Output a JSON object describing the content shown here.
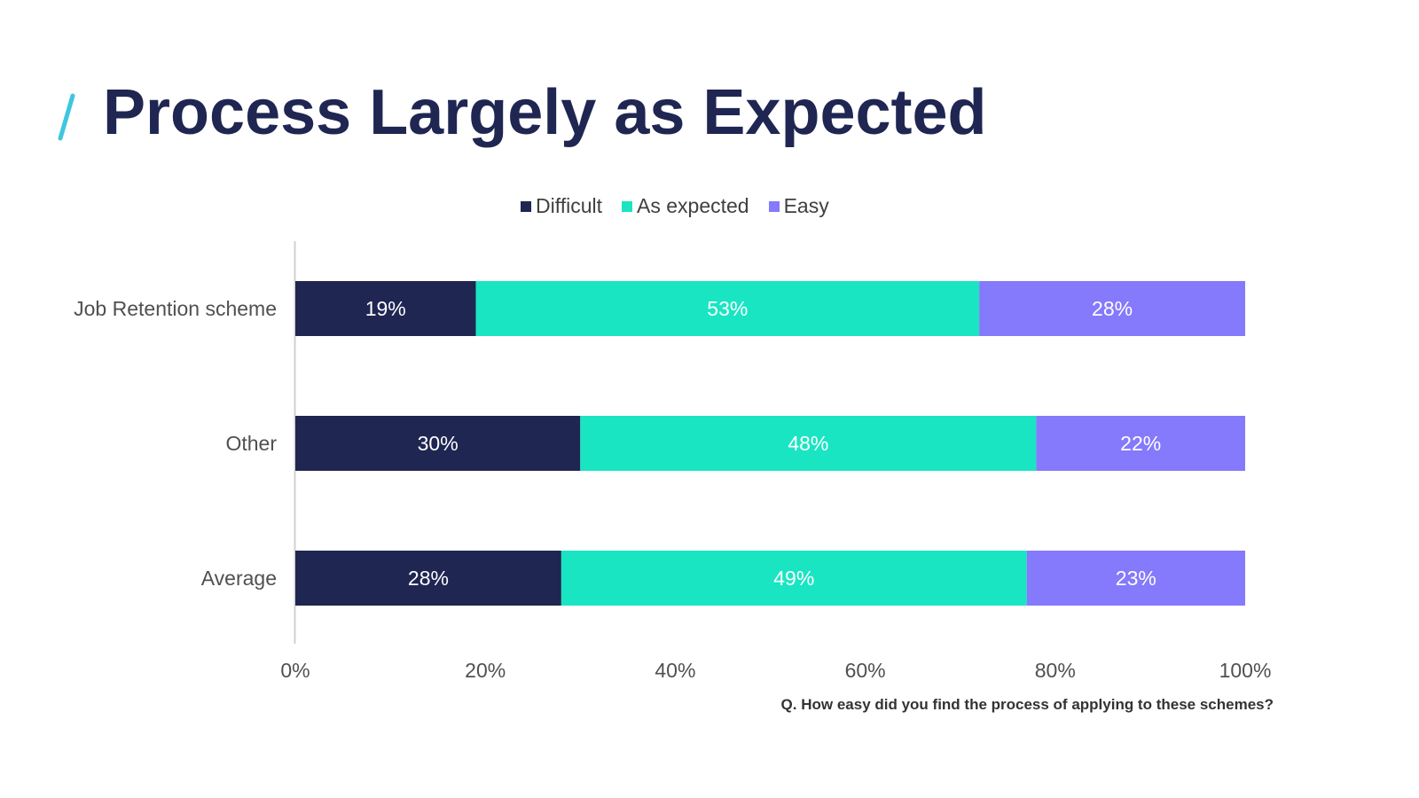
{
  "title": "Process Largely as Expected",
  "footnote": "Q. How easy did you find the process of applying to these schemes?",
  "colors": {
    "title": "#1f2652",
    "accent": "#3ec6e0",
    "difficult": "#1f2652",
    "as_expected": "#1ae5c2",
    "easy": "#8579fc",
    "axis_text": "#505050"
  },
  "legend": [
    {
      "label": "Difficult",
      "color": "#1f2652"
    },
    {
      "label": "As expected",
      "color": "#1ae5c2"
    },
    {
      "label": "Easy",
      "color": "#8579fc"
    }
  ],
  "chart_data": {
    "type": "bar",
    "orientation": "horizontal",
    "stacked": true,
    "categories": [
      "Job Retention scheme",
      "Other",
      "Average"
    ],
    "series": [
      {
        "name": "Difficult",
        "values": [
          19,
          30,
          28
        ],
        "labels": [
          "19%",
          "30%",
          "28%"
        ]
      },
      {
        "name": "As expected",
        "values": [
          53,
          48,
          49
        ],
        "labels": [
          "53%",
          "48%",
          "49%"
        ]
      },
      {
        "name": "Easy",
        "values": [
          28,
          22,
          23
        ],
        "labels": [
          "28%",
          "22%",
          "23%"
        ]
      }
    ],
    "xlim": [
      0,
      100
    ],
    "x_ticks": [
      "0%",
      "20%",
      "40%",
      "60%",
      "80%",
      "100%"
    ],
    "legend_position": "top",
    "grid": false
  }
}
